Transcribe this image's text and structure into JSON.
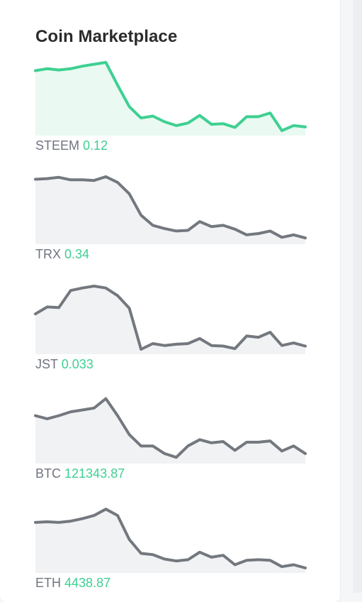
{
  "panel": {
    "title": "Coin Marketplace"
  },
  "colors": {
    "accent": "#3ed092",
    "accent_fill": "#eafaf2",
    "muted_line": "#73787f",
    "muted_fill": "#f1f2f4"
  },
  "coins": [
    {
      "symbol": "STEEM",
      "price": "0.12",
      "active": true,
      "history": [
        0.95,
        0.98,
        0.96,
        0.98,
        1.02,
        1.05,
        1.08,
        0.72,
        0.38,
        0.2,
        0.23,
        0.14,
        0.08,
        0.12,
        0.24,
        0.1,
        0.11,
        0.05,
        0.22,
        0.22,
        0.28,
        0.0,
        0.08,
        0.06
      ]
    },
    {
      "symbol": "TRX",
      "price": "0.34",
      "active": false,
      "history": [
        0.95,
        0.96,
        0.98,
        0.94,
        0.94,
        0.93,
        0.99,
        0.9,
        0.72,
        0.38,
        0.22,
        0.17,
        0.13,
        0.14,
        0.28,
        0.2,
        0.22,
        0.16,
        0.07,
        0.09,
        0.13,
        0.03,
        0.07,
        0.02
      ]
    },
    {
      "symbol": "JST",
      "price": "0.033",
      "active": false,
      "history": [
        0.56,
        0.67,
        0.66,
        0.93,
        0.97,
        1.0,
        0.97,
        0.85,
        0.65,
        0.0,
        0.09,
        0.06,
        0.08,
        0.09,
        0.17,
        0.06,
        0.05,
        0.01,
        0.21,
        0.19,
        0.27,
        0.06,
        0.1,
        0.05
      ]
    },
    {
      "symbol": "BTC",
      "price": "121343.87",
      "active": false,
      "history": [
        0.68,
        0.63,
        0.68,
        0.74,
        0.77,
        0.8,
        0.95,
        0.68,
        0.38,
        0.2,
        0.2,
        0.08,
        0.02,
        0.2,
        0.3,
        0.25,
        0.27,
        0.13,
        0.26,
        0.26,
        0.28,
        0.12,
        0.2,
        0.08
      ]
    },
    {
      "symbol": "ETH",
      "price": "4438.87",
      "active": false,
      "history": [
        0.72,
        0.73,
        0.72,
        0.74,
        0.78,
        0.83,
        0.93,
        0.83,
        0.45,
        0.23,
        0.21,
        0.14,
        0.11,
        0.13,
        0.25,
        0.17,
        0.2,
        0.05,
        0.12,
        0.13,
        0.12,
        0.02,
        0.05,
        0.0
      ]
    }
  ]
}
